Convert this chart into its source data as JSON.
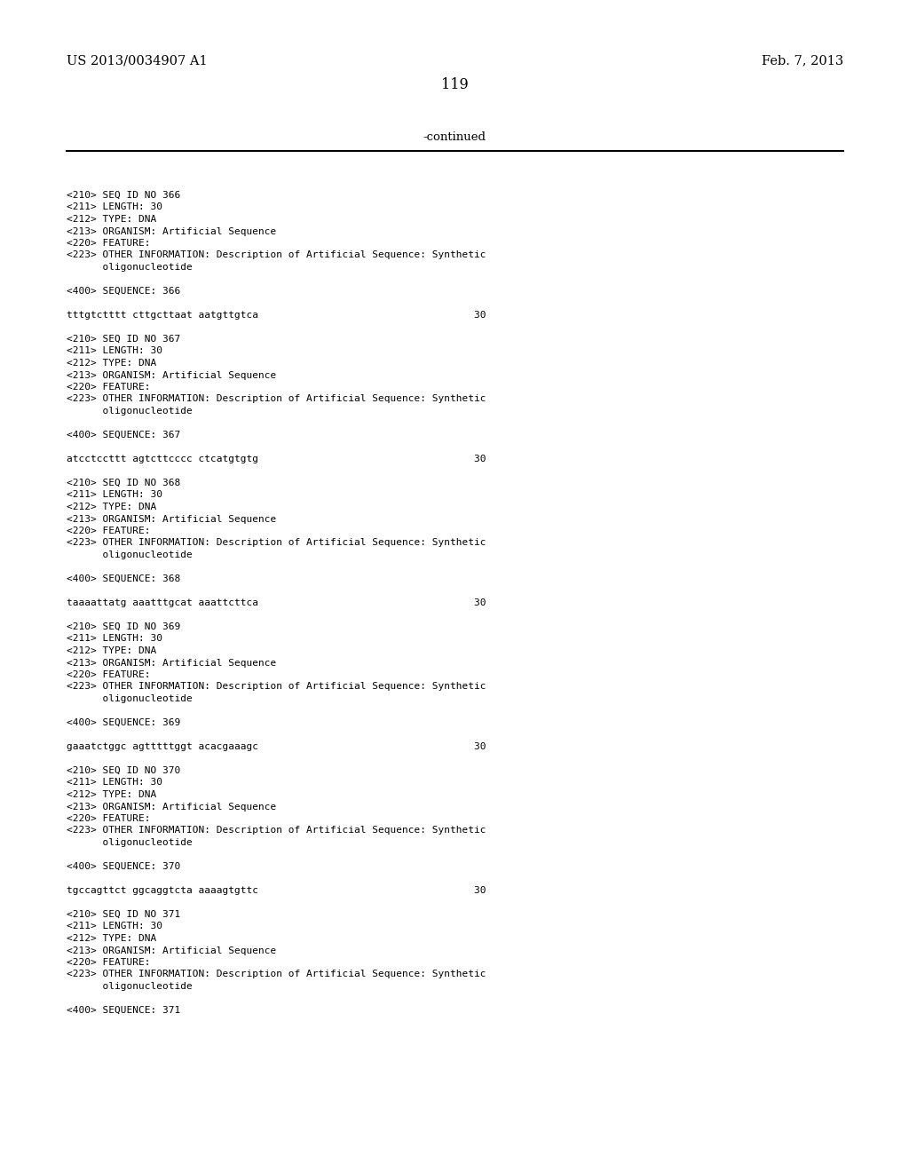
{
  "bg_color": "#ffffff",
  "text_color": "#000000",
  "header_left": "US 2013/0034907 A1",
  "header_right": "Feb. 7, 2013",
  "page_number": "119",
  "continued_label": "-continued",
  "font_size_header": 10.5,
  "font_size_page": 11.5,
  "font_size_continued": 9.5,
  "mono_font": "monospace",
  "content_blocks": [
    {
      "lines": [
        "<210> SEQ ID NO 366",
        "<211> LENGTH: 30",
        "<212> TYPE: DNA",
        "<213> ORGANISM: Artificial Sequence",
        "<220> FEATURE:",
        "<223> OTHER INFORMATION: Description of Artificial Sequence: Synthetic",
        "      oligonucleotide",
        "",
        "<400> SEQUENCE: 366",
        "",
        "tttgtctttt cttgcttaat aatgttgtca                                    30"
      ]
    },
    {
      "lines": [
        "<210> SEQ ID NO 367",
        "<211> LENGTH: 30",
        "<212> TYPE: DNA",
        "<213> ORGANISM: Artificial Sequence",
        "<220> FEATURE:",
        "<223> OTHER INFORMATION: Description of Artificial Sequence: Synthetic",
        "      oligonucleotide",
        "",
        "<400> SEQUENCE: 367",
        "",
        "atcctccttt agtcttcccc ctcatgtgtg                                    30"
      ]
    },
    {
      "lines": [
        "<210> SEQ ID NO 368",
        "<211> LENGTH: 30",
        "<212> TYPE: DNA",
        "<213> ORGANISM: Artificial Sequence",
        "<220> FEATURE:",
        "<223> OTHER INFORMATION: Description of Artificial Sequence: Synthetic",
        "      oligonucleotide",
        "",
        "<400> SEQUENCE: 368",
        "",
        "taaaattatg aaatttgcat aaattcttca                                    30"
      ]
    },
    {
      "lines": [
        "<210> SEQ ID NO 369",
        "<211> LENGTH: 30",
        "<212> TYPE: DNA",
        "<213> ORGANISM: Artificial Sequence",
        "<220> FEATURE:",
        "<223> OTHER INFORMATION: Description of Artificial Sequence: Synthetic",
        "      oligonucleotide",
        "",
        "<400> SEQUENCE: 369",
        "",
        "gaaatctggc agtttttggt acacgaaagc                                    30"
      ]
    },
    {
      "lines": [
        "<210> SEQ ID NO 370",
        "<211> LENGTH: 30",
        "<212> TYPE: DNA",
        "<213> ORGANISM: Artificial Sequence",
        "<220> FEATURE:",
        "<223> OTHER INFORMATION: Description of Artificial Sequence: Synthetic",
        "      oligonucleotide",
        "",
        "<400> SEQUENCE: 370",
        "",
        "tgccagttct ggcaggtcta aaaagtgttc                                    30"
      ]
    },
    {
      "lines": [
        "<210> SEQ ID NO 371",
        "<211> LENGTH: 30",
        "<212> TYPE: DNA",
        "<213> ORGANISM: Artificial Sequence",
        "<220> FEATURE:",
        "<223> OTHER INFORMATION: Description of Artificial Sequence: Synthetic",
        "      oligonucleotide",
        "",
        "<400> SEQUENCE: 371"
      ]
    }
  ]
}
